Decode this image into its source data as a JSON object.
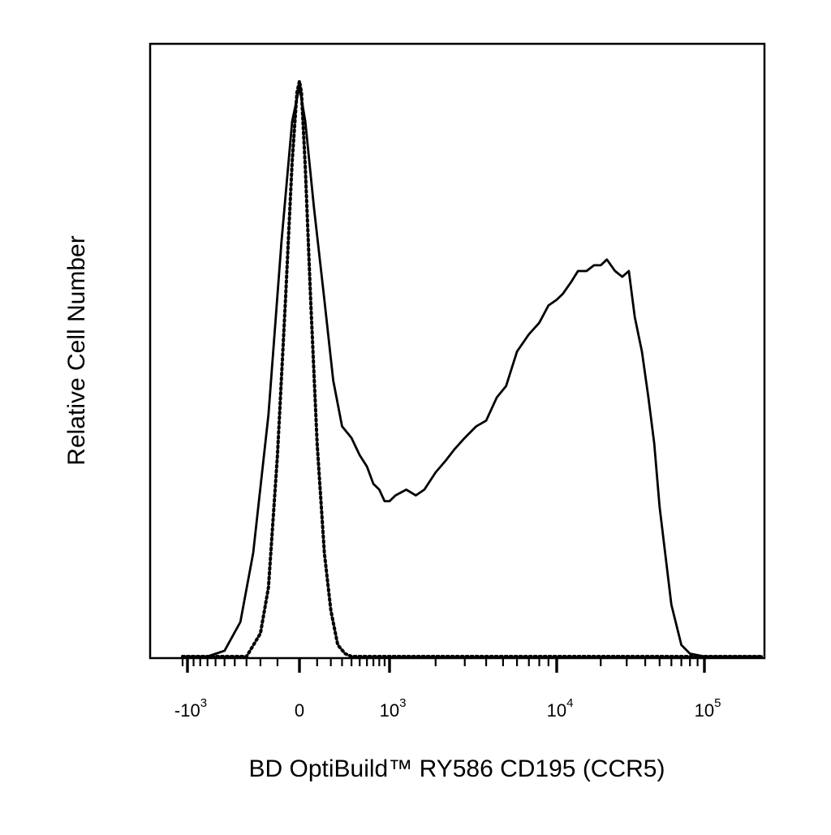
{
  "chart_data": {
    "type": "line",
    "title": "",
    "xlabel": "BD OptiBuild™ RY586 CD195 (CCR5)",
    "ylabel": "Relative Cell Number",
    "x_scale": "biexponential",
    "xlim": [
      -2000,
      170000
    ],
    "ylim": [
      0,
      1
    ],
    "grid": false,
    "legend": "none",
    "x_ticks": [
      {
        "value": -1000,
        "base": "-10",
        "exp": "3"
      },
      {
        "value": 0,
        "base": "0",
        "exp": ""
      },
      {
        "value": 1000,
        "base": "10",
        "exp": "3"
      },
      {
        "value": 10000,
        "base": "10",
        "exp": "4"
      },
      {
        "value": 100000,
        "base": "10",
        "exp": "5"
      }
    ],
    "series": [
      {
        "style": "solid",
        "x": [
          -2000,
          -700,
          -500,
          -350,
          -250,
          -150,
          -80,
          -30,
          0,
          30,
          80,
          150,
          220,
          300,
          400,
          500,
          600,
          700,
          800,
          900,
          1000,
          1100,
          1300,
          1500,
          1700,
          2000,
          2300,
          2600,
          3000,
          3500,
          4000,
          4600,
          5200,
          6000,
          7000,
          8000,
          9000,
          10000,
          11000,
          12500,
          14000,
          16000,
          18000,
          20000,
          22000,
          25000,
          28000,
          31000,
          34000,
          38000,
          42000,
          46000,
          50000,
          60000,
          70000,
          80000,
          100000,
          170000
        ],
        "y": [
          0,
          0,
          0.01,
          0.06,
          0.18,
          0.42,
          0.72,
          0.93,
          0.99,
          0.93,
          0.78,
          0.62,
          0.48,
          0.4,
          0.38,
          0.35,
          0.33,
          0.3,
          0.29,
          0.27,
          0.27,
          0.28,
          0.29,
          0.28,
          0.29,
          0.32,
          0.34,
          0.36,
          0.38,
          0.4,
          0.41,
          0.45,
          0.47,
          0.53,
          0.56,
          0.58,
          0.61,
          0.62,
          0.63,
          0.65,
          0.67,
          0.67,
          0.68,
          0.68,
          0.69,
          0.67,
          0.66,
          0.67,
          0.59,
          0.53,
          0.45,
          0.37,
          0.26,
          0.09,
          0.02,
          0.005,
          0,
          0
        ]
      },
      {
        "style": "dotted",
        "x": [
          -2000,
          -300,
          -200,
          -150,
          -100,
          -60,
          -30,
          -10,
          0,
          10,
          30,
          60,
          100,
          150,
          200,
          260,
          330,
          400,
          170000
        ],
        "y": [
          0,
          0,
          0.04,
          0.12,
          0.35,
          0.62,
          0.86,
          0.98,
          1.0,
          0.98,
          0.85,
          0.62,
          0.37,
          0.18,
          0.08,
          0.02,
          0.005,
          0,
          0
        ]
      }
    ]
  }
}
